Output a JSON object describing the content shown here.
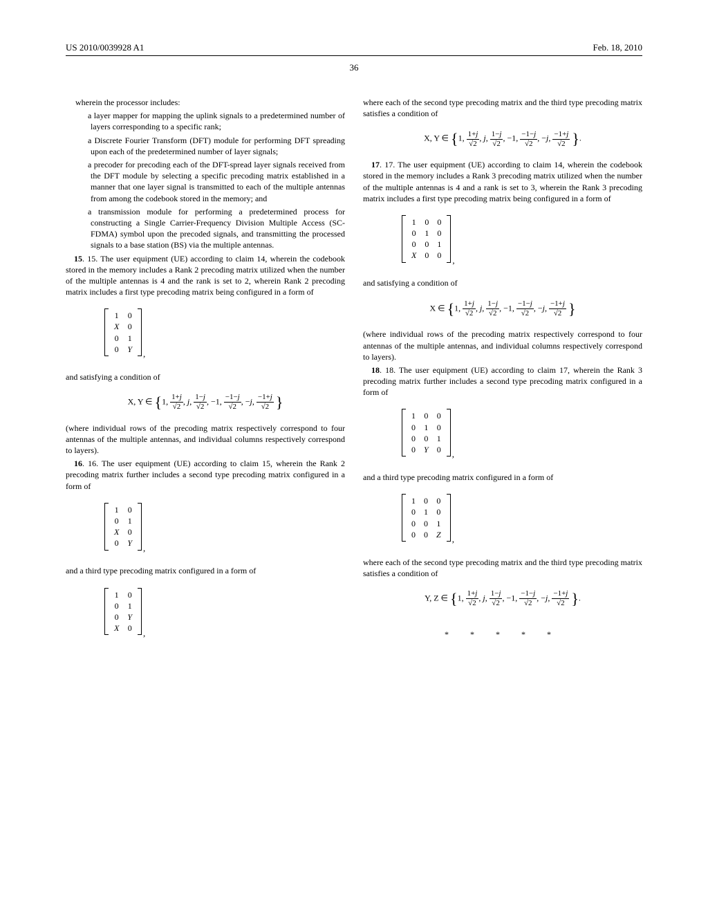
{
  "header": {
    "left": "US 2010/0039928 A1",
    "right": "Feb. 18, 2010"
  },
  "pageNumber": "36",
  "col1": {
    "p1": "wherein the processor includes:",
    "l1": "a layer mapper for mapping the uplink signals to a predetermined number of layers corresponding to a specific rank;",
    "l2": "a Discrete Fourier Transform (DFT) module for performing DFT spreading upon each of the predetermined number of layer signals;",
    "l3": "a precoder for precoding each of the DFT-spread layer signals received from the DFT module by selecting a specific precoding matrix established in a manner that one layer signal is transmitted to each of the multiple antennas from among the codebook stored in the memory; and",
    "l4": "a transmission module for performing a predetermined process for constructing a Single Carrier-Frequency Division Multiple Access (SC-FDMA) symbol upon the precoded signals, and transmitting the processed signals to a base station (BS) via the multiple antennas.",
    "c15": "15. The user equipment (UE) according to claim 14, wherein the codebook stored in the memory includes a Rank 2 precoding matrix utilized when the number of the multiple antennas is 4 and the rank is set to 2, wherein Rank 2 precoding matrix includes a first type precoding matrix being configured in a form of",
    "sat1": "and satisfying a condition of",
    "p2": "(where individual rows of the precoding matrix respectively correspond to four antennas of the multiple antennas, and individual columns respectively correspond to layers).",
    "c16": "16. The user equipment (UE) according to claim 15, wherein the Rank 2 precoding matrix further includes a second type precoding matrix configured in a form of",
    "p3": "and a third type precoding matrix configured in a form of"
  },
  "col2": {
    "p1": "where each of the second type precoding matrix and the third type precoding matrix satisfies a condition of",
    "c17": "17. The user equipment (UE) according to claim 14, wherein the codebook stored in the memory includes a Rank 3 precoding matrix utilized when the number of the multiple antennas is 4 and a rank is set to 3, wherein the Rank 3 precoding matrix includes a first type precoding matrix being configured in a form of",
    "sat1": "and satisfying a condition of",
    "p2": "(where individual rows of the precoding matrix respectively correspond to four antennas of the multiple antennas, and individual columns respectively correspond to layers).",
    "c18": "18. The user equipment (UE) according to claim 17, wherein the Rank 3 precoding matrix further includes a second type precoding matrix configured in a form of",
    "p3": "and a third type precoding matrix configured in a form of",
    "p4": "where each of the second type precoding matrix and the third type precoding matrix satisfies a condition of"
  },
  "setprefix": {
    "xy": "X, Y ∈",
    "x": "X ∈",
    "yz": "Y, Z ∈"
  },
  "stars": "* * * * *"
}
